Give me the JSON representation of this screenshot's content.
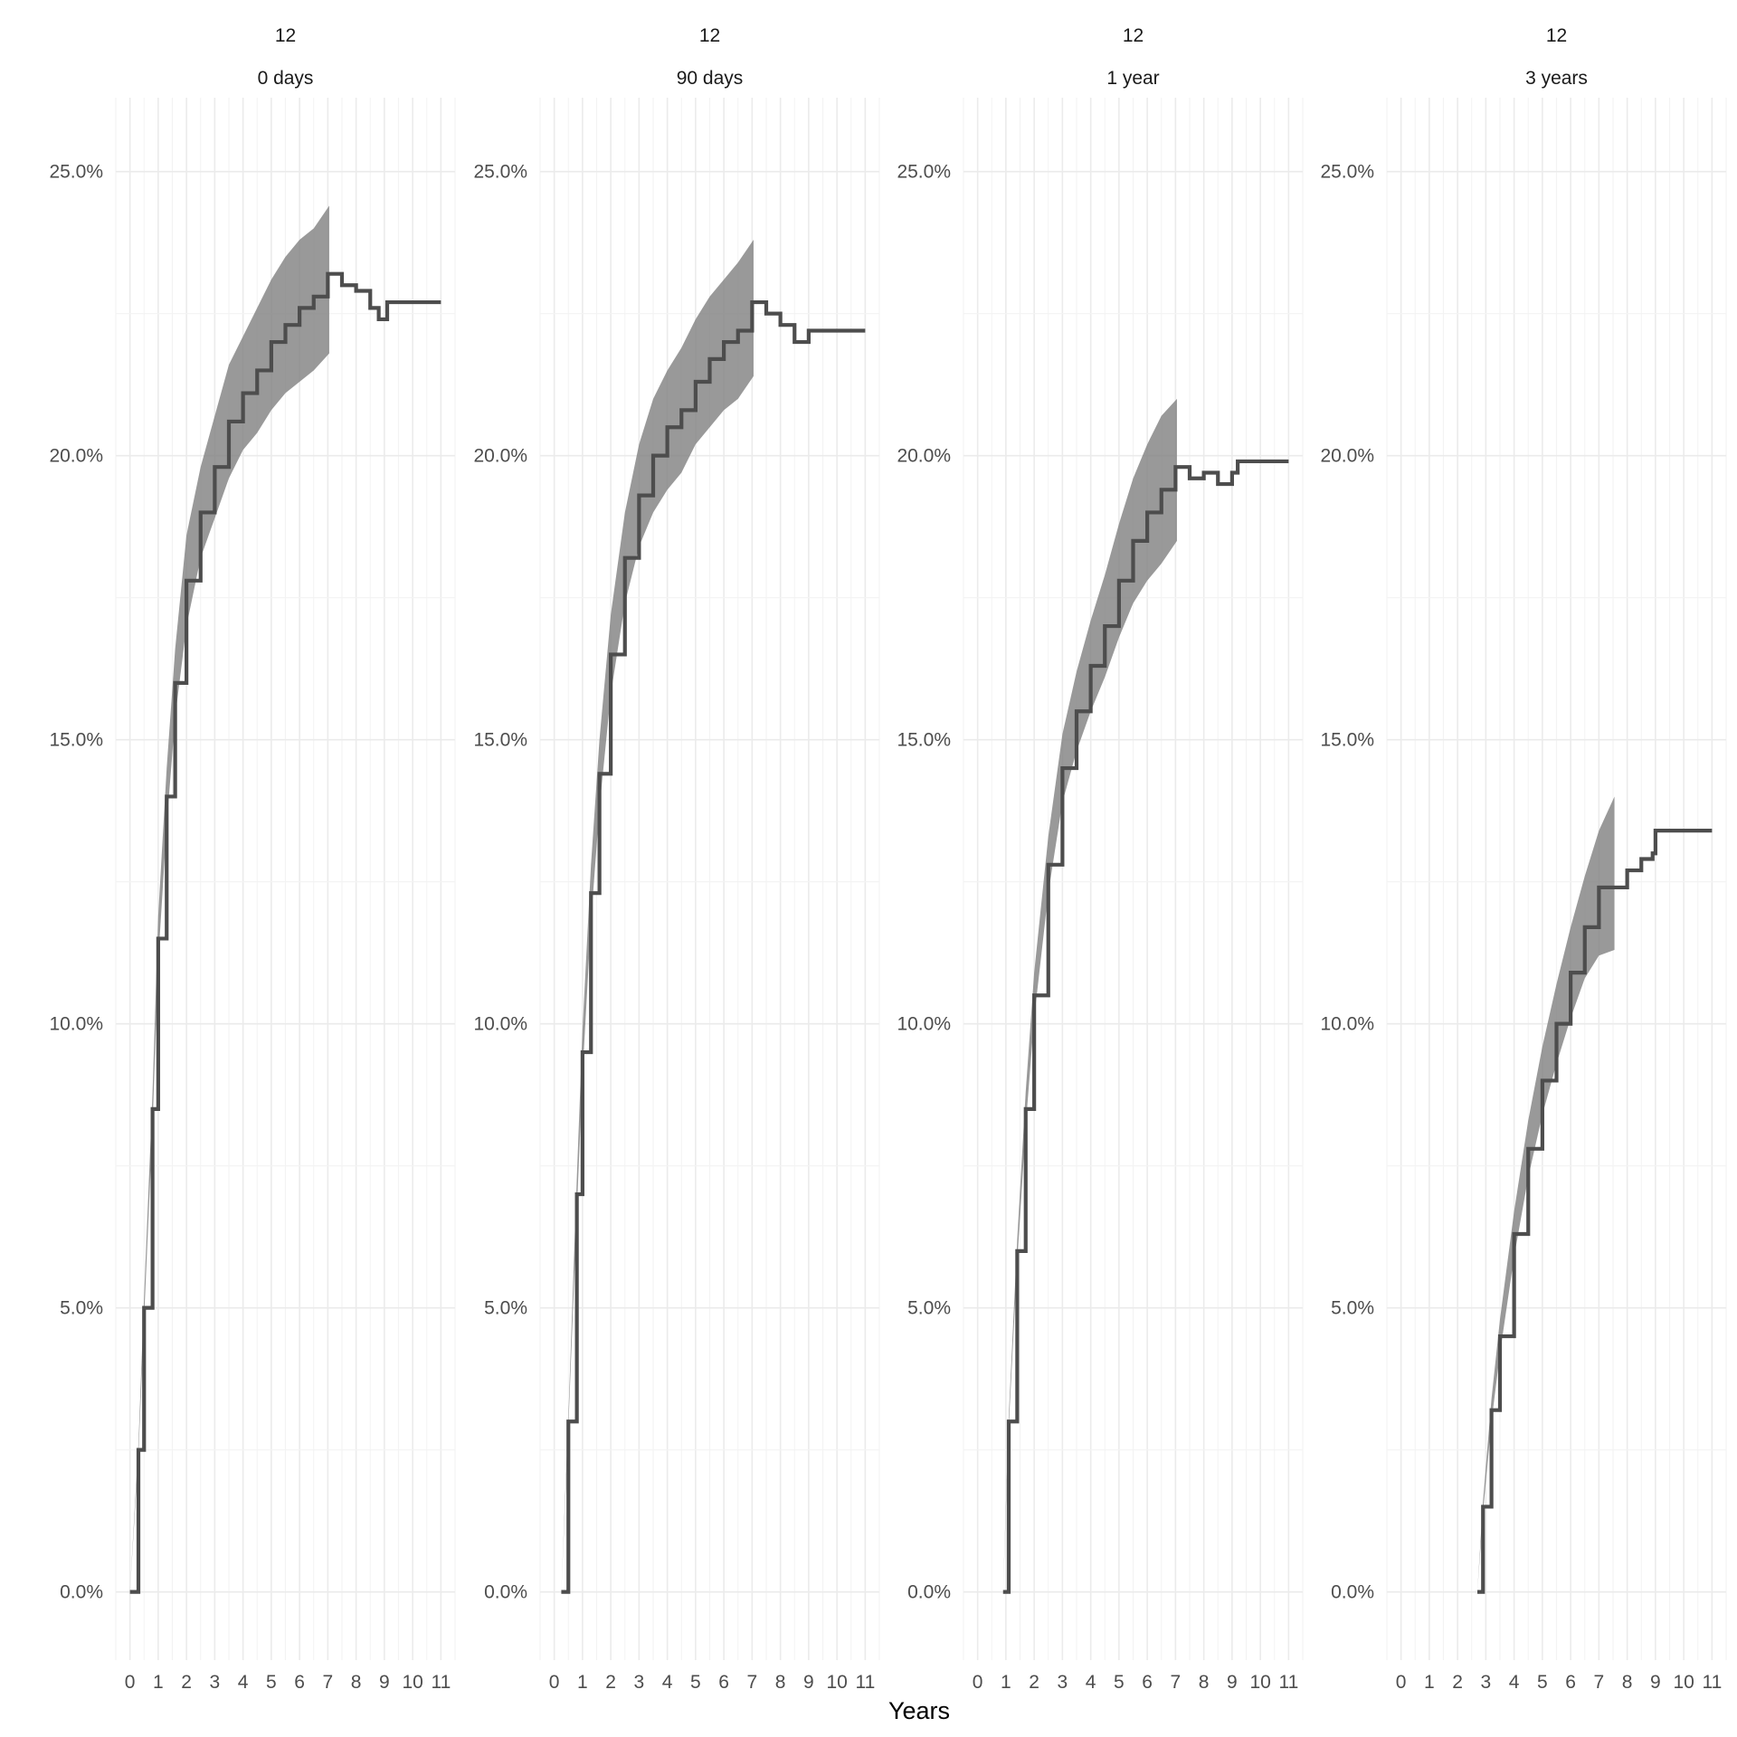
{
  "chart_data": {
    "type": "line",
    "xlabel": "Years",
    "ylabel": "",
    "xlim": [
      -0.5,
      11.5
    ],
    "ylim": [
      -1.2,
      26.3
    ],
    "x_ticks": [
      "0",
      "1",
      "2",
      "3",
      "4",
      "5",
      "6",
      "7",
      "8",
      "9",
      "10",
      "11"
    ],
    "y_ticks": [
      "0.0%",
      "5.0%",
      "10.0%",
      "15.0%",
      "20.0%",
      "25.0%"
    ],
    "panels": [
      {
        "strip_top": "12",
        "strip_bottom": "0 days",
        "start": 0.0,
        "band_end": 7.05,
        "line_end": 11.0,
        "points": [
          [
            0,
            0
          ],
          [
            0.3,
            2.5
          ],
          [
            0.5,
            5.0
          ],
          [
            0.8,
            8.5
          ],
          [
            1.0,
            11.5
          ],
          [
            1.3,
            14.0
          ],
          [
            1.6,
            16.0
          ],
          [
            2.0,
            17.8
          ],
          [
            2.5,
            19.0
          ],
          [
            3.0,
            19.8
          ],
          [
            3.5,
            20.6
          ],
          [
            4.0,
            21.1
          ],
          [
            4.5,
            21.5
          ],
          [
            5.0,
            22.0
          ],
          [
            5.5,
            22.3
          ],
          [
            6.0,
            22.6
          ],
          [
            6.5,
            22.8
          ],
          [
            7.0,
            23.2
          ],
          [
            7.5,
            23.0
          ],
          [
            8.0,
            22.9
          ],
          [
            8.5,
            22.6
          ],
          [
            8.8,
            22.4
          ],
          [
            9.1,
            22.7
          ],
          [
            11.0,
            22.7
          ]
        ],
        "band": [
          [
            0,
            0,
            0
          ],
          [
            0.3,
            2.4,
            2.6
          ],
          [
            0.5,
            4.8,
            5.2
          ],
          [
            0.8,
            8.2,
            8.8
          ],
          [
            1.0,
            11.1,
            11.9
          ],
          [
            1.3,
            13.5,
            14.5
          ],
          [
            1.6,
            15.4,
            16.6
          ],
          [
            2.0,
            17.0,
            18.6
          ],
          [
            2.5,
            18.2,
            19.8
          ],
          [
            3.0,
            18.9,
            20.7
          ],
          [
            3.5,
            19.6,
            21.6
          ],
          [
            4.0,
            20.1,
            22.1
          ],
          [
            4.5,
            20.4,
            22.6
          ],
          [
            5.0,
            20.8,
            23.1
          ],
          [
            5.5,
            21.1,
            23.5
          ],
          [
            6.0,
            21.3,
            23.8
          ],
          [
            6.5,
            21.5,
            24.0
          ],
          [
            7.05,
            21.8,
            24.4
          ]
        ]
      },
      {
        "strip_top": "12",
        "strip_bottom": "90 days",
        "start": 0.25,
        "band_end": 7.05,
        "line_end": 11.0,
        "points": [
          [
            0.25,
            0
          ],
          [
            0.5,
            3.0
          ],
          [
            0.8,
            7.0
          ],
          [
            1.0,
            9.5
          ],
          [
            1.3,
            12.3
          ],
          [
            1.6,
            14.4
          ],
          [
            2.0,
            16.5
          ],
          [
            2.5,
            18.2
          ],
          [
            3.0,
            19.3
          ],
          [
            3.5,
            20.0
          ],
          [
            4.0,
            20.5
          ],
          [
            4.5,
            20.8
          ],
          [
            5.0,
            21.3
          ],
          [
            5.5,
            21.7
          ],
          [
            6.0,
            22.0
          ],
          [
            6.5,
            22.2
          ],
          [
            7.0,
            22.7
          ],
          [
            7.5,
            22.5
          ],
          [
            8.0,
            22.3
          ],
          [
            8.5,
            22.0
          ],
          [
            9.0,
            22.2
          ],
          [
            11.0,
            22.2
          ]
        ],
        "band": [
          [
            0.25,
            0,
            0
          ],
          [
            0.5,
            2.9,
            3.1
          ],
          [
            0.8,
            6.7,
            7.3
          ],
          [
            1.0,
            9.1,
            9.9
          ],
          [
            1.3,
            11.8,
            12.8
          ],
          [
            1.6,
            13.8,
            15.0
          ],
          [
            2.0,
            15.8,
            17.2
          ],
          [
            2.5,
            17.4,
            19.0
          ],
          [
            3.0,
            18.4,
            20.2
          ],
          [
            3.5,
            19.0,
            21.0
          ],
          [
            4.0,
            19.4,
            21.5
          ],
          [
            4.5,
            19.7,
            21.9
          ],
          [
            5.0,
            20.2,
            22.4
          ],
          [
            5.5,
            20.5,
            22.8
          ],
          [
            6.0,
            20.8,
            23.1
          ],
          [
            6.5,
            21.0,
            23.4
          ],
          [
            7.05,
            21.4,
            23.8
          ]
        ]
      },
      {
        "strip_top": "12",
        "strip_bottom": "1 year",
        "start": 0.9,
        "band_end": 7.05,
        "line_end": 11.0,
        "points": [
          [
            0.9,
            0
          ],
          [
            1.1,
            3.0
          ],
          [
            1.4,
            6.0
          ],
          [
            1.7,
            8.5
          ],
          [
            2.0,
            10.5
          ],
          [
            2.5,
            12.8
          ],
          [
            3.0,
            14.5
          ],
          [
            3.5,
            15.5
          ],
          [
            4.0,
            16.3
          ],
          [
            4.5,
            17.0
          ],
          [
            5.0,
            17.8
          ],
          [
            5.5,
            18.5
          ],
          [
            6.0,
            19.0
          ],
          [
            6.5,
            19.4
          ],
          [
            7.0,
            19.8
          ],
          [
            7.5,
            19.6
          ],
          [
            8.0,
            19.7
          ],
          [
            8.5,
            19.5
          ],
          [
            9.0,
            19.7
          ],
          [
            9.2,
            19.9
          ],
          [
            11.0,
            19.9
          ]
        ],
        "band": [
          [
            0.9,
            0,
            0
          ],
          [
            1.1,
            2.9,
            3.1
          ],
          [
            1.4,
            5.8,
            6.2
          ],
          [
            1.7,
            8.2,
            8.8
          ],
          [
            2.0,
            10.1,
            10.9
          ],
          [
            2.5,
            12.3,
            13.3
          ],
          [
            3.0,
            13.9,
            15.1
          ],
          [
            3.5,
            14.8,
            16.2
          ],
          [
            4.0,
            15.5,
            17.1
          ],
          [
            4.5,
            16.1,
            17.9
          ],
          [
            5.0,
            16.8,
            18.8
          ],
          [
            5.5,
            17.4,
            19.6
          ],
          [
            6.0,
            17.8,
            20.2
          ],
          [
            6.5,
            18.1,
            20.7
          ],
          [
            7.05,
            18.5,
            21.0
          ]
        ]
      },
      {
        "strip_top": "12",
        "strip_bottom": "3 years",
        "start": 2.7,
        "band_end": 7.55,
        "line_end": 11.0,
        "points": [
          [
            2.7,
            0
          ],
          [
            2.9,
            1.5
          ],
          [
            3.2,
            3.2
          ],
          [
            3.5,
            4.5
          ],
          [
            4.0,
            6.3
          ],
          [
            4.5,
            7.8
          ],
          [
            5.0,
            9.0
          ],
          [
            5.5,
            10.0
          ],
          [
            6.0,
            10.9
          ],
          [
            6.5,
            11.7
          ],
          [
            7.0,
            12.4
          ],
          [
            7.5,
            12.4
          ],
          [
            8.0,
            12.7
          ],
          [
            8.5,
            12.9
          ],
          [
            8.9,
            13.0
          ],
          [
            9.0,
            13.4
          ],
          [
            11.0,
            13.4
          ]
        ],
        "band": [
          [
            2.7,
            0,
            0
          ],
          [
            2.9,
            1.4,
            1.6
          ],
          [
            3.2,
            3.0,
            3.4
          ],
          [
            3.5,
            4.2,
            4.8
          ],
          [
            4.0,
            5.9,
            6.7
          ],
          [
            4.5,
            7.3,
            8.3
          ],
          [
            5.0,
            8.4,
            9.6
          ],
          [
            5.5,
            9.3,
            10.7
          ],
          [
            6.0,
            10.1,
            11.7
          ],
          [
            6.5,
            10.8,
            12.6
          ],
          [
            7.0,
            11.2,
            13.4
          ],
          [
            7.55,
            11.3,
            14.0
          ]
        ]
      }
    ]
  }
}
